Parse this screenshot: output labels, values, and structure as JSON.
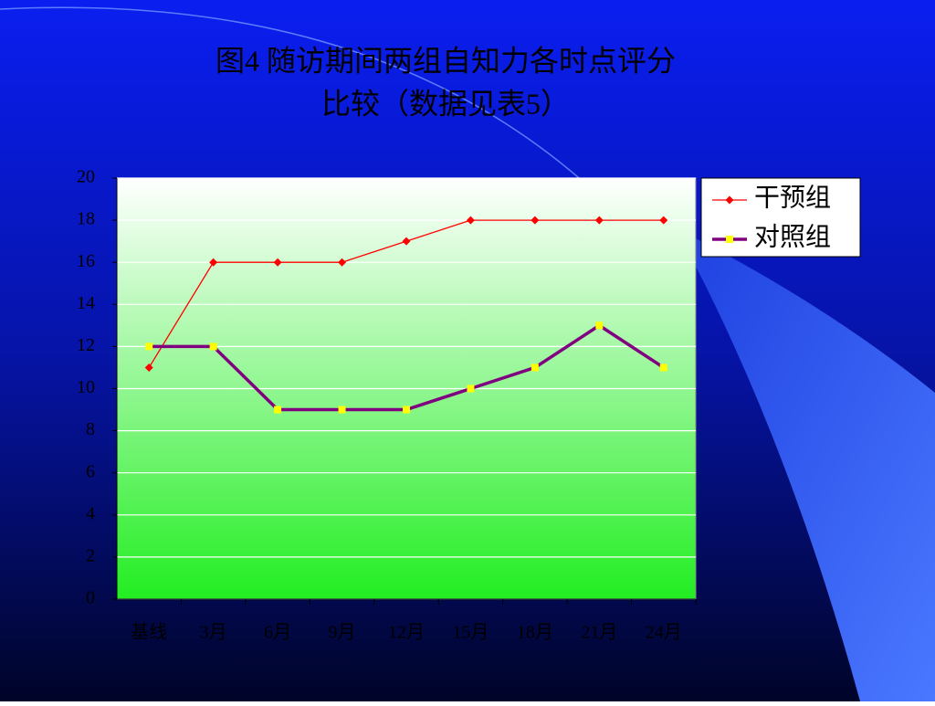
{
  "chart_data": {
    "type": "line",
    "title": [
      "图4 随访期间两组自知力各时点评分",
      "比较（数据见表5）"
    ],
    "categories": [
      "基线",
      "3月",
      "6月",
      "9月",
      "12月",
      "15月",
      "18月",
      "21月",
      "24月"
    ],
    "series": [
      {
        "name": "干预组",
        "color": "#ff0000",
        "marker_color": "#ff0000",
        "marker": "diamond",
        "values": [
          11,
          16,
          16,
          16,
          17,
          18,
          18,
          18,
          18
        ]
      },
      {
        "name": "对照组",
        "color": "#800080",
        "marker_color": "#ffff00",
        "marker": "square",
        "values": [
          12,
          12,
          9,
          9,
          9,
          10,
          11,
          13,
          11
        ]
      }
    ],
    "ylim": [
      0,
      20
    ],
    "yticks": [
      0,
      2,
      4,
      6,
      8,
      10,
      12,
      14,
      16,
      18,
      20
    ],
    "grid": true,
    "legend": "right"
  }
}
